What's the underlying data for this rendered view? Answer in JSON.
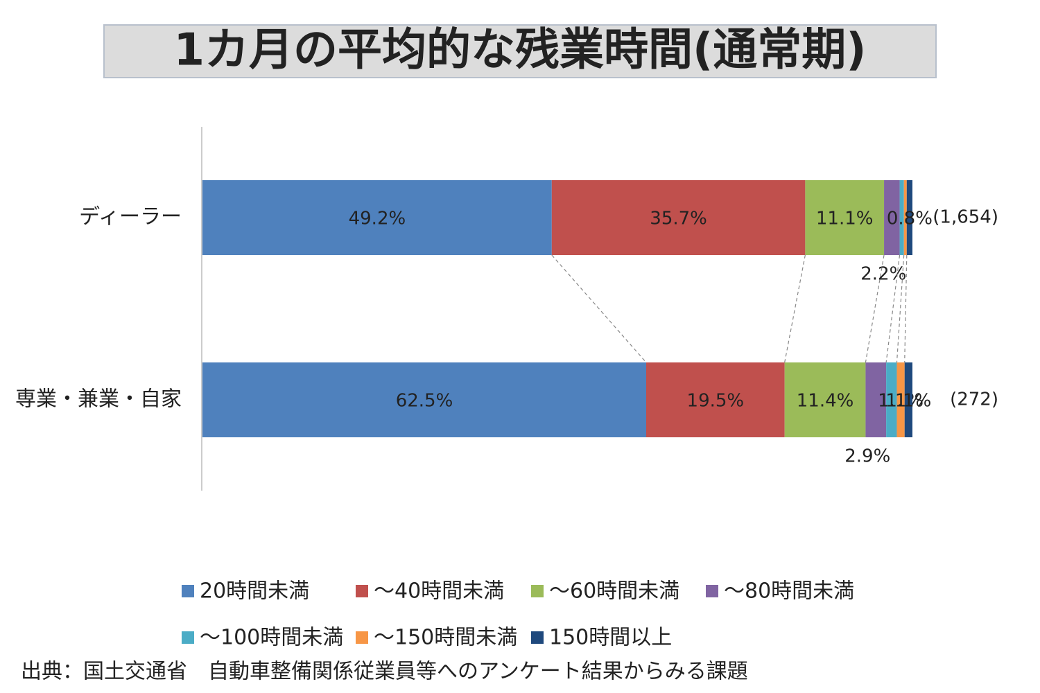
{
  "chart_data": {
    "type": "stacked_bar_100",
    "title": "1カ月の平均的な残業時間(通常期)",
    "categories": [
      "ディーラー",
      "専業・兼業・自家"
    ],
    "sample_labels": [
      "(1,654)",
      "(272)"
    ],
    "series": [
      {
        "name": "20時間未満",
        "color": "#4f81bd",
        "values": [
          49.2,
          62.5
        ],
        "value_labels": [
          "49.2%",
          "62.5%"
        ]
      },
      {
        "name": "～40時間未満",
        "color": "#c0504d",
        "values": [
          35.7,
          19.5
        ],
        "value_labels": [
          "35.7%",
          "19.5%"
        ]
      },
      {
        "name": "～60時間未満",
        "color": "#9bbb59",
        "values": [
          11.1,
          11.4
        ],
        "value_labels": [
          "11.1%",
          "11.4%"
        ]
      },
      {
        "name": "～80時間未満",
        "color": "#8064a2",
        "values": [
          2.2,
          2.9
        ],
        "value_labels": [
          "2.2%",
          "2.9%"
        ]
      },
      {
        "name": "～100時間未満",
        "color": "#4bacc6",
        "values": [
          0.6,
          1.5
        ],
        "value_labels": [
          null,
          null
        ]
      },
      {
        "name": "～150時間未満",
        "color": "#f79646",
        "values": [
          0.4,
          1.1
        ],
        "value_labels": [
          null,
          "1.1%"
        ]
      },
      {
        "name": "150時間以上",
        "color": "#1f497d",
        "values": [
          0.8,
          1.1
        ],
        "value_labels": [
          "0.8%",
          "1.1%"
        ]
      }
    ],
    "xlim": [
      0,
      100
    ],
    "source": "出典：国土交通省　自動車整備関係従業員等へのアンケート結果からみる課題"
  }
}
